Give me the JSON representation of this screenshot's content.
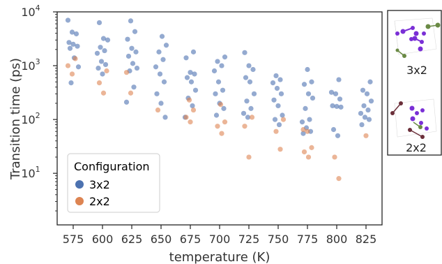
{
  "chart_data": {
    "type": "scatter",
    "xlabel": "temperature (K)",
    "ylabel": "Transition time (ps)",
    "yscale": "log",
    "ylim": [
      1.1,
      10000
    ],
    "categories": [
      "575",
      "600",
      "625",
      "650",
      "675",
      "700",
      "725",
      "750",
      "775",
      "800",
      "825"
    ],
    "y_ticks": [
      {
        "mantissa": "10",
        "exp": "1",
        "value": 10
      },
      {
        "mantissa": "10",
        "exp": "2",
        "value": 100
      },
      {
        "mantissa": "10",
        "exp": "3",
        "value": 1000
      },
      {
        "mantissa": "10",
        "exp": "4",
        "value": 10000
      }
    ],
    "legend": {
      "title": "Configuration",
      "position": "lower-left",
      "entries": [
        {
          "label": "3x2",
          "color": "#4c72b0"
        },
        {
          "label": "2x2",
          "color": "#dd8452"
        }
      ]
    },
    "series": [
      {
        "name": "3x2",
        "color": "#4c72b0",
        "points": [
          {
            "x": "575",
            "y": [
              7000,
              4200,
              3900,
              2700,
              2500,
              2300,
              2100,
              1400,
              950,
              480
            ]
          },
          {
            "x": "600",
            "y": [
              6300,
              3200,
              3000,
              2200,
              1900,
              1700,
              1200,
              1050,
              900,
              700
            ]
          },
          {
            "x": "625",
            "y": [
              6800,
              4300,
              3100,
              2100,
              1800,
              1500,
              1100,
              900,
              800,
              400,
              210
            ]
          },
          {
            "x": "650",
            "y": [
              3500,
              2400,
              1800,
              1300,
              950,
              700,
              500,
              300,
              200,
              110
            ]
          },
          {
            "x": "675",
            "y": [
              1800,
              1400,
              750,
              700,
              600,
              500,
              350,
              250,
              180,
              110
            ]
          },
          {
            "x": "700",
            "y": [
              1450,
              1200,
              1000,
              800,
              500,
              350,
              300,
              200,
              160,
              120
            ]
          },
          {
            "x": "725",
            "y": [
              1750,
              1000,
              850,
              600,
              500,
              300,
              220,
              160,
              130,
              110
            ]
          },
          {
            "x": "750",
            "y": [
              650,
              550,
              480,
              380,
              300,
              230,
              180,
              120,
              100,
              80
            ]
          },
          {
            "x": "775",
            "y": [
              850,
              500,
              450,
              300,
              250,
              160,
              100,
              90,
              70,
              60,
              55
            ]
          },
          {
            "x": "800",
            "y": [
              550,
              320,
              300,
              240,
              180,
              175,
              170,
              65,
              50
            ]
          },
          {
            "x": "825",
            "y": [
              500,
              350,
              300,
              220,
              180,
              150,
              130,
              110,
              100,
              80
            ]
          }
        ]
      },
      {
        "name": "2x2",
        "color": "#dd8452",
        "points": [
          {
            "x": "575",
            "y": [
              1350,
              1000,
              700
            ]
          },
          {
            "x": "600",
            "y": [
              800,
              480,
              310
            ]
          },
          {
            "x": "625",
            "y": [
              750,
              310
            ]
          },
          {
            "x": "650",
            "y": [
              150
            ]
          },
          {
            "x": "675",
            "y": [
              230,
              150,
              110,
              90
            ]
          },
          {
            "x": "700",
            "y": [
              190,
              90,
              75,
              55
            ]
          },
          {
            "x": "725",
            "y": [
              110,
              75,
              20
            ]
          },
          {
            "x": "750",
            "y": [
              100,
              60,
              28
            ]
          },
          {
            "x": "775",
            "y": [
              65,
              60,
              30,
              25,
              20
            ]
          },
          {
            "x": "800",
            "y": [
              20,
              8
            ]
          },
          {
            "x": "825",
            "y": [
              50
            ]
          }
        ]
      }
    ]
  },
  "insets": [
    {
      "label": "3x2",
      "colors": [
        "#7a2fd6",
        "#6a8a45"
      ]
    },
    {
      "label": "2x2",
      "colors": [
        "#7a2fd6",
        "#6b2f3a"
      ]
    }
  ]
}
